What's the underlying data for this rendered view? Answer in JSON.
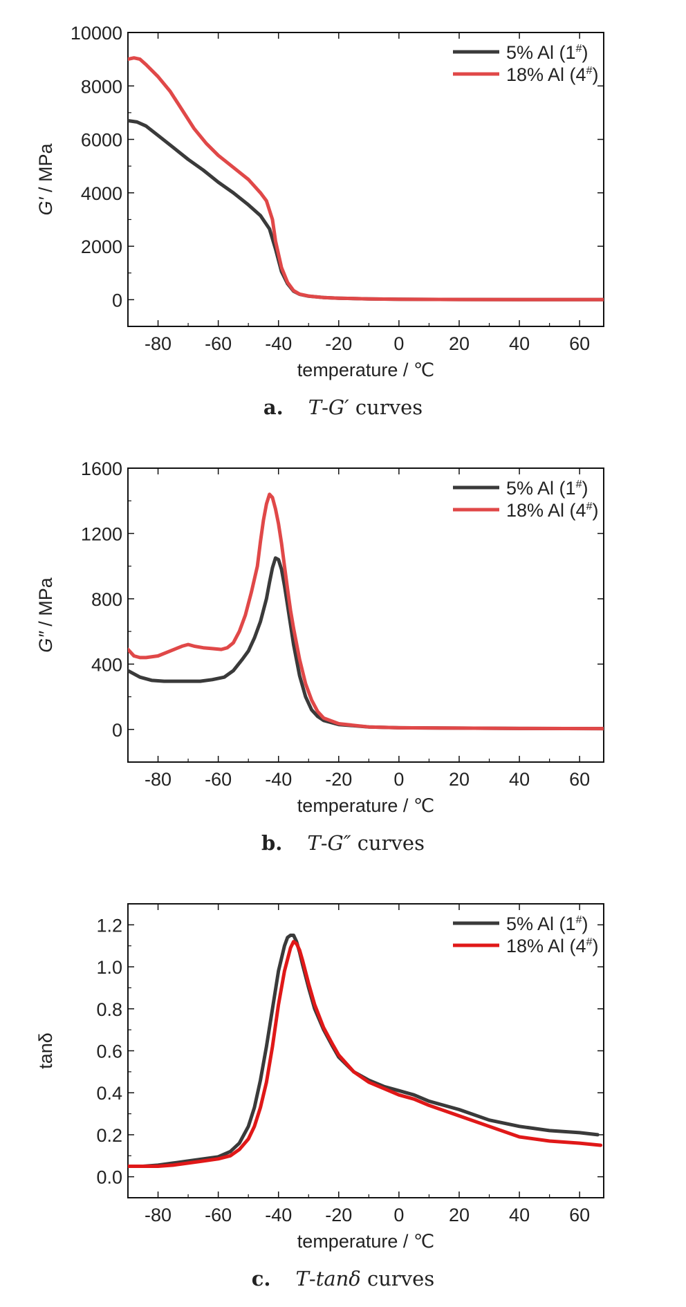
{
  "colors": {
    "series1": "#3a3a3a",
    "series2": "#e04848",
    "series2_c": "#e01818",
    "axis": "#111111"
  },
  "xlabel": "temperature / ℃",
  "panels": [
    {
      "caption": {
        "letter": "a.",
        "prefix": "T",
        "dash": "-",
        "var": "G′",
        "suffix": " curves"
      },
      "ylabel_var": "G′",
      "ylabel_unit": " / MPa"
    },
    {
      "caption": {
        "letter": "b.",
        "prefix": "T",
        "dash": "-",
        "var": "G″",
        "suffix": " curves"
      },
      "ylabel_var": "G″",
      "ylabel_unit": " / MPa"
    },
    {
      "caption": {
        "letter": "c.",
        "prefix": "T",
        "dash": "-",
        "var": "tanδ",
        "suffix": " curves"
      },
      "ylabel_var": "",
      "ylabel_unit": "tanδ"
    }
  ],
  "chart_data": [
    {
      "type": "line",
      "xlabel": "temperature / ℃",
      "ylabel": "G′ / MPa",
      "xlim": [
        -90,
        68
      ],
      "ylim": [
        -1000,
        10000
      ],
      "xticks": [
        -80,
        -60,
        -40,
        -20,
        0,
        20,
        40,
        60
      ],
      "yticks": [
        0,
        2000,
        4000,
        6000,
        8000,
        10000
      ],
      "legend_position": "top-right",
      "series": [
        {
          "name": "5% Al (1#)",
          "color": "#3a3a3a",
          "x": [
            -90,
            -87,
            -84,
            -80,
            -75,
            -70,
            -65,
            -60,
            -55,
            -50,
            -46,
            -43,
            -41,
            -39,
            -37,
            -35,
            -33,
            -30,
            -25,
            -20,
            -10,
            0,
            20,
            40,
            68
          ],
          "y": [
            6700,
            6650,
            6500,
            6150,
            5700,
            5250,
            4850,
            4400,
            4000,
            3550,
            3150,
            2650,
            1900,
            1050,
            600,
            320,
            200,
            130,
            80,
            55,
            30,
            15,
            8,
            5,
            3
          ]
        },
        {
          "name": "18% Al (4#)",
          "color": "#e04848",
          "x": [
            -90,
            -88,
            -86,
            -84,
            -80,
            -76,
            -72,
            -68,
            -64,
            -60,
            -55,
            -50,
            -46,
            -44,
            -42,
            -41,
            -39,
            -37,
            -35,
            -33,
            -30,
            -25,
            -20,
            -10,
            0,
            20,
            40,
            68
          ],
          "y": [
            9000,
            9050,
            9000,
            8800,
            8350,
            7800,
            7100,
            6400,
            5850,
            5400,
            4950,
            4500,
            4000,
            3700,
            3000,
            2200,
            1200,
            650,
            340,
            210,
            135,
            80,
            55,
            30,
            15,
            8,
            5,
            3
          ]
        }
      ]
    },
    {
      "type": "line",
      "xlabel": "temperature / ℃",
      "ylabel": "G″ / MPa",
      "xlim": [
        -90,
        68
      ],
      "ylim": [
        -200,
        1600
      ],
      "xticks": [
        -80,
        -60,
        -40,
        -20,
        0,
        20,
        40,
        60
      ],
      "yticks": [
        0,
        400,
        800,
        1200,
        1600
      ],
      "legend_position": "top-right",
      "series": [
        {
          "name": "5% Al (1#)",
          "color": "#3a3a3a",
          "x": [
            -90,
            -86,
            -82,
            -78,
            -74,
            -70,
            -66,
            -62,
            -58,
            -55,
            -52,
            -50,
            -48,
            -46,
            -44,
            -43,
            -42,
            -41,
            -40,
            -39,
            -38,
            -37,
            -35,
            -33,
            -31,
            -29,
            -27,
            -25,
            -20,
            -10,
            0,
            20,
            40,
            68
          ],
          "y": [
            360,
            320,
            300,
            295,
            295,
            295,
            295,
            305,
            320,
            360,
            430,
            480,
            560,
            660,
            800,
            900,
            990,
            1050,
            1040,
            980,
            880,
            760,
            520,
            330,
            200,
            120,
            80,
            55,
            30,
            15,
            10,
            8,
            6,
            5
          ]
        },
        {
          "name": "18% Al (4#)",
          "color": "#e04848",
          "x": [
            -90,
            -88,
            -86,
            -84,
            -80,
            -76,
            -72,
            -70,
            -68,
            -65,
            -62,
            -59,
            -57,
            -55,
            -53,
            -51,
            -49,
            -47,
            -46,
            -45,
            -44,
            -43,
            -42,
            -41,
            -40,
            -39,
            -38,
            -37,
            -36,
            -35,
            -33,
            -31,
            -29,
            -27,
            -25,
            -20,
            -10,
            0,
            20,
            40,
            68
          ],
          "y": [
            490,
            450,
            440,
            440,
            450,
            480,
            510,
            520,
            510,
            500,
            495,
            490,
            500,
            530,
            600,
            700,
            840,
            1000,
            1150,
            1280,
            1380,
            1440,
            1420,
            1350,
            1260,
            1140,
            1000,
            860,
            730,
            620,
            430,
            280,
            180,
            110,
            70,
            35,
            15,
            10,
            8,
            6,
            5
          ]
        }
      ]
    },
    {
      "type": "line",
      "xlabel": "temperature / ℃",
      "ylabel": "tanδ",
      "xlim": [
        -90,
        68
      ],
      "ylim": [
        -0.1,
        1.3
      ],
      "xticks": [
        -80,
        -60,
        -40,
        -20,
        0,
        20,
        40,
        60
      ],
      "yticks": [
        0.0,
        0.2,
        0.4,
        0.6,
        0.8,
        1.0,
        1.2
      ],
      "legend_position": "top-right",
      "series": [
        {
          "name": "5% Al (1#)",
          "color": "#3a3a3a",
          "x": [
            -90,
            -85,
            -80,
            -75,
            -70,
            -65,
            -60,
            -56,
            -53,
            -50,
            -48,
            -46,
            -44,
            -42,
            -40,
            -38,
            -37,
            -36,
            -35,
            -34,
            -33,
            -32,
            -30,
            -28,
            -25,
            -22,
            -20,
            -15,
            -10,
            -5,
            0,
            5,
            10,
            20,
            30,
            40,
            50,
            60,
            66
          ],
          "y": [
            0.05,
            0.05,
            0.055,
            0.065,
            0.075,
            0.085,
            0.095,
            0.12,
            0.16,
            0.24,
            0.33,
            0.46,
            0.62,
            0.8,
            0.98,
            1.1,
            1.14,
            1.15,
            1.15,
            1.12,
            1.07,
            1.01,
            0.9,
            0.8,
            0.7,
            0.62,
            0.57,
            0.5,
            0.46,
            0.43,
            0.41,
            0.39,
            0.36,
            0.32,
            0.27,
            0.24,
            0.22,
            0.21,
            0.2
          ]
        },
        {
          "name": "18% Al (4#)",
          "color": "#e01818",
          "x": [
            -90,
            -85,
            -80,
            -75,
            -70,
            -65,
            -60,
            -56,
            -53,
            -50,
            -48,
            -46,
            -44,
            -42,
            -40,
            -38,
            -36,
            -35,
            -34,
            -33,
            -32,
            -30,
            -28,
            -25,
            -22,
            -20,
            -15,
            -10,
            -5,
            0,
            5,
            10,
            20,
            30,
            40,
            50,
            60,
            67
          ],
          "y": [
            0.05,
            0.05,
            0.05,
            0.055,
            0.065,
            0.075,
            0.085,
            0.1,
            0.13,
            0.18,
            0.24,
            0.33,
            0.45,
            0.62,
            0.82,
            0.98,
            1.09,
            1.12,
            1.11,
            1.08,
            1.03,
            0.92,
            0.82,
            0.71,
            0.63,
            0.58,
            0.5,
            0.45,
            0.42,
            0.39,
            0.37,
            0.34,
            0.29,
            0.24,
            0.19,
            0.17,
            0.16,
            0.15
          ]
        }
      ]
    }
  ]
}
